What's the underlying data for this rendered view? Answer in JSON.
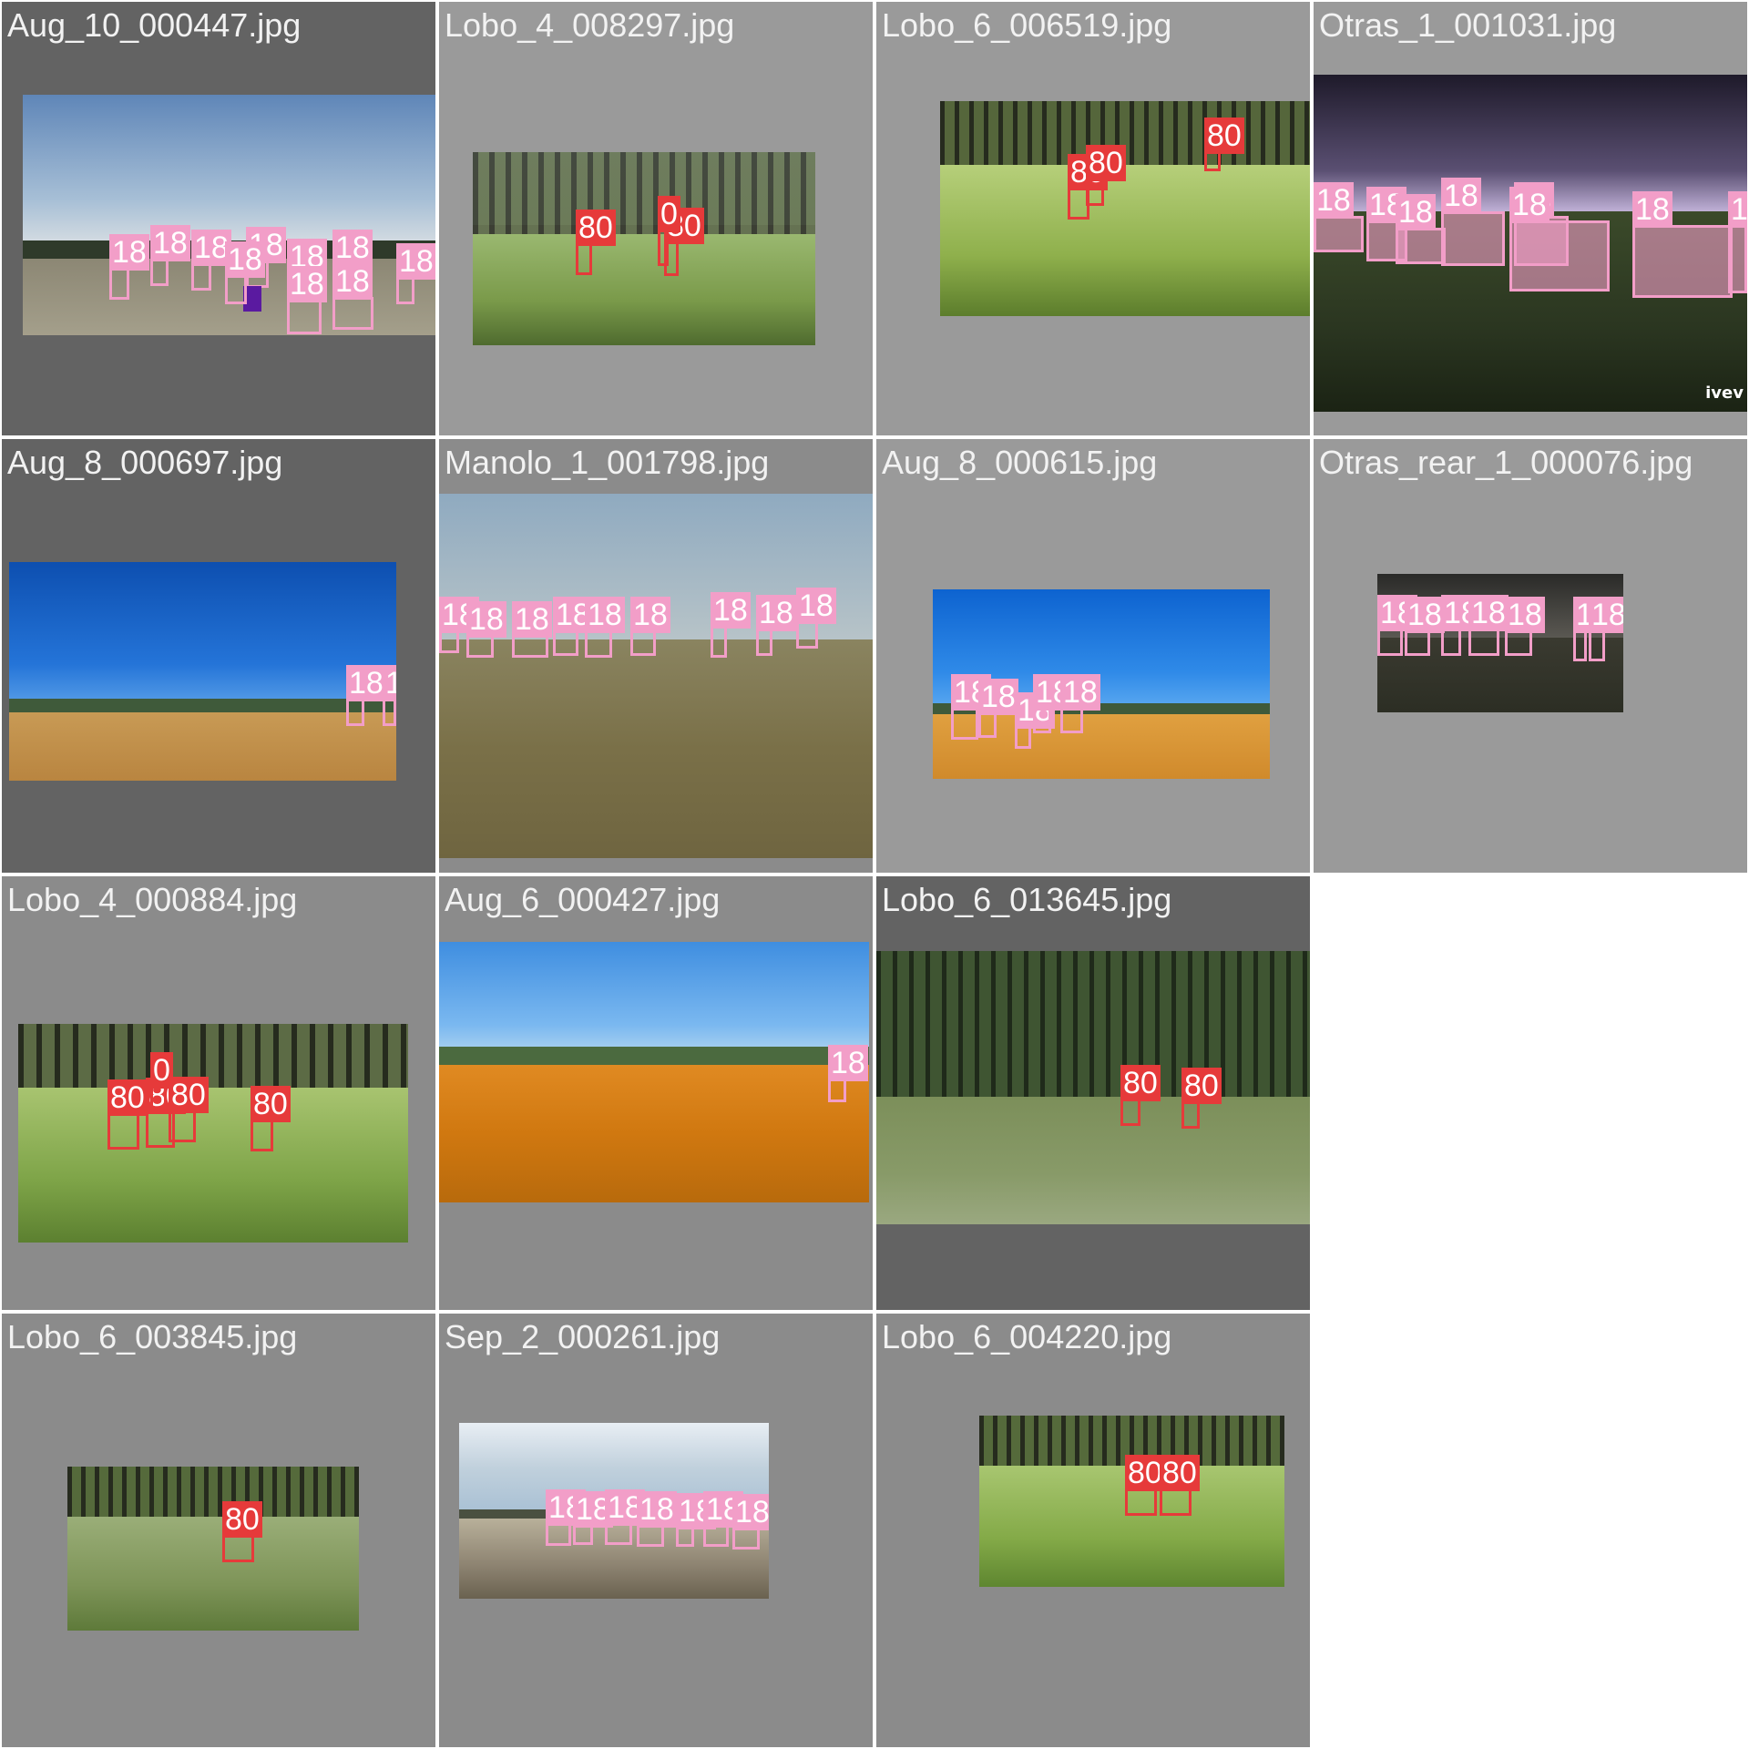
{
  "colors": {
    "class_18": "#f29ec8",
    "class_80": "#e63a3a",
    "class_other": "#5a1aa0",
    "tile_dark": "#636363",
    "tile_mid": "#8b8b8b",
    "tile_light": "#9a9a9a"
  },
  "tiles": [
    {
      "title": "Aug_10_000447.jpg",
      "scene": "grass_sky",
      "labels": [
        "18",
        "18",
        "18",
        "18",
        "18",
        "18",
        "18",
        "18",
        "18",
        "18",
        "18",
        "18"
      ]
    },
    {
      "title": "Lobo_4_008297.jpg",
      "scene": "pine_scrub",
      "labels": [
        "80",
        "80",
        "0"
      ]
    },
    {
      "title": "Lobo_6_006519.jpg",
      "scene": "pine_scrub",
      "labels": [
        "80",
        "80",
        "80"
      ]
    },
    {
      "title": "Otras_1_001031.jpg",
      "scene": "night_barn",
      "watermark": "ivev",
      "labels": [
        "18",
        "18",
        "18",
        "18",
        "18",
        "18",
        "18",
        "18"
      ]
    },
    {
      "title": "Aug_8_000697.jpg",
      "scene": "blue_field",
      "labels": [
        "18",
        "18"
      ]
    },
    {
      "title": "Manolo_1_001798.jpg",
      "scene": "dry_pasture",
      "labels": [
        "18",
        "18",
        "18",
        "18",
        "18",
        "18",
        "18",
        "18",
        "18"
      ]
    },
    {
      "title": "Aug_8_000615.jpg",
      "scene": "blue_field",
      "labels": [
        "18",
        "18",
        "18",
        "18",
        "18"
      ]
    },
    {
      "title": "Otras_rear_1_000076.jpg",
      "scene": "dark_shed",
      "labels": [
        "18",
        "18",
        "18",
        "18",
        "18",
        "18",
        "18"
      ]
    },
    {
      "title": "Lobo_4_000884.jpg",
      "scene": "pine_scrub",
      "labels": [
        "80",
        "80",
        "80",
        "80",
        "0"
      ]
    },
    {
      "title": "Aug_6_000427.jpg",
      "scene": "golden_field",
      "labels": [
        "18"
      ]
    },
    {
      "title": "Lobo_6_013645.jpg",
      "scene": "pine_scrub",
      "labels": [
        "80",
        "80"
      ]
    },
    {
      "title": "Lobo_6_003845.jpg",
      "scene": "pine_scrub",
      "labels": [
        "80"
      ]
    },
    {
      "title": "Sep_2_000261.jpg",
      "scene": "cloudy_scrub",
      "labels": [
        "18",
        "18",
        "18",
        "18",
        "18",
        "18",
        "18"
      ]
    },
    {
      "title": "Lobo_6_004220.jpg",
      "scene": "pine_scrub",
      "labels": [
        "80",
        "80"
      ]
    }
  ]
}
